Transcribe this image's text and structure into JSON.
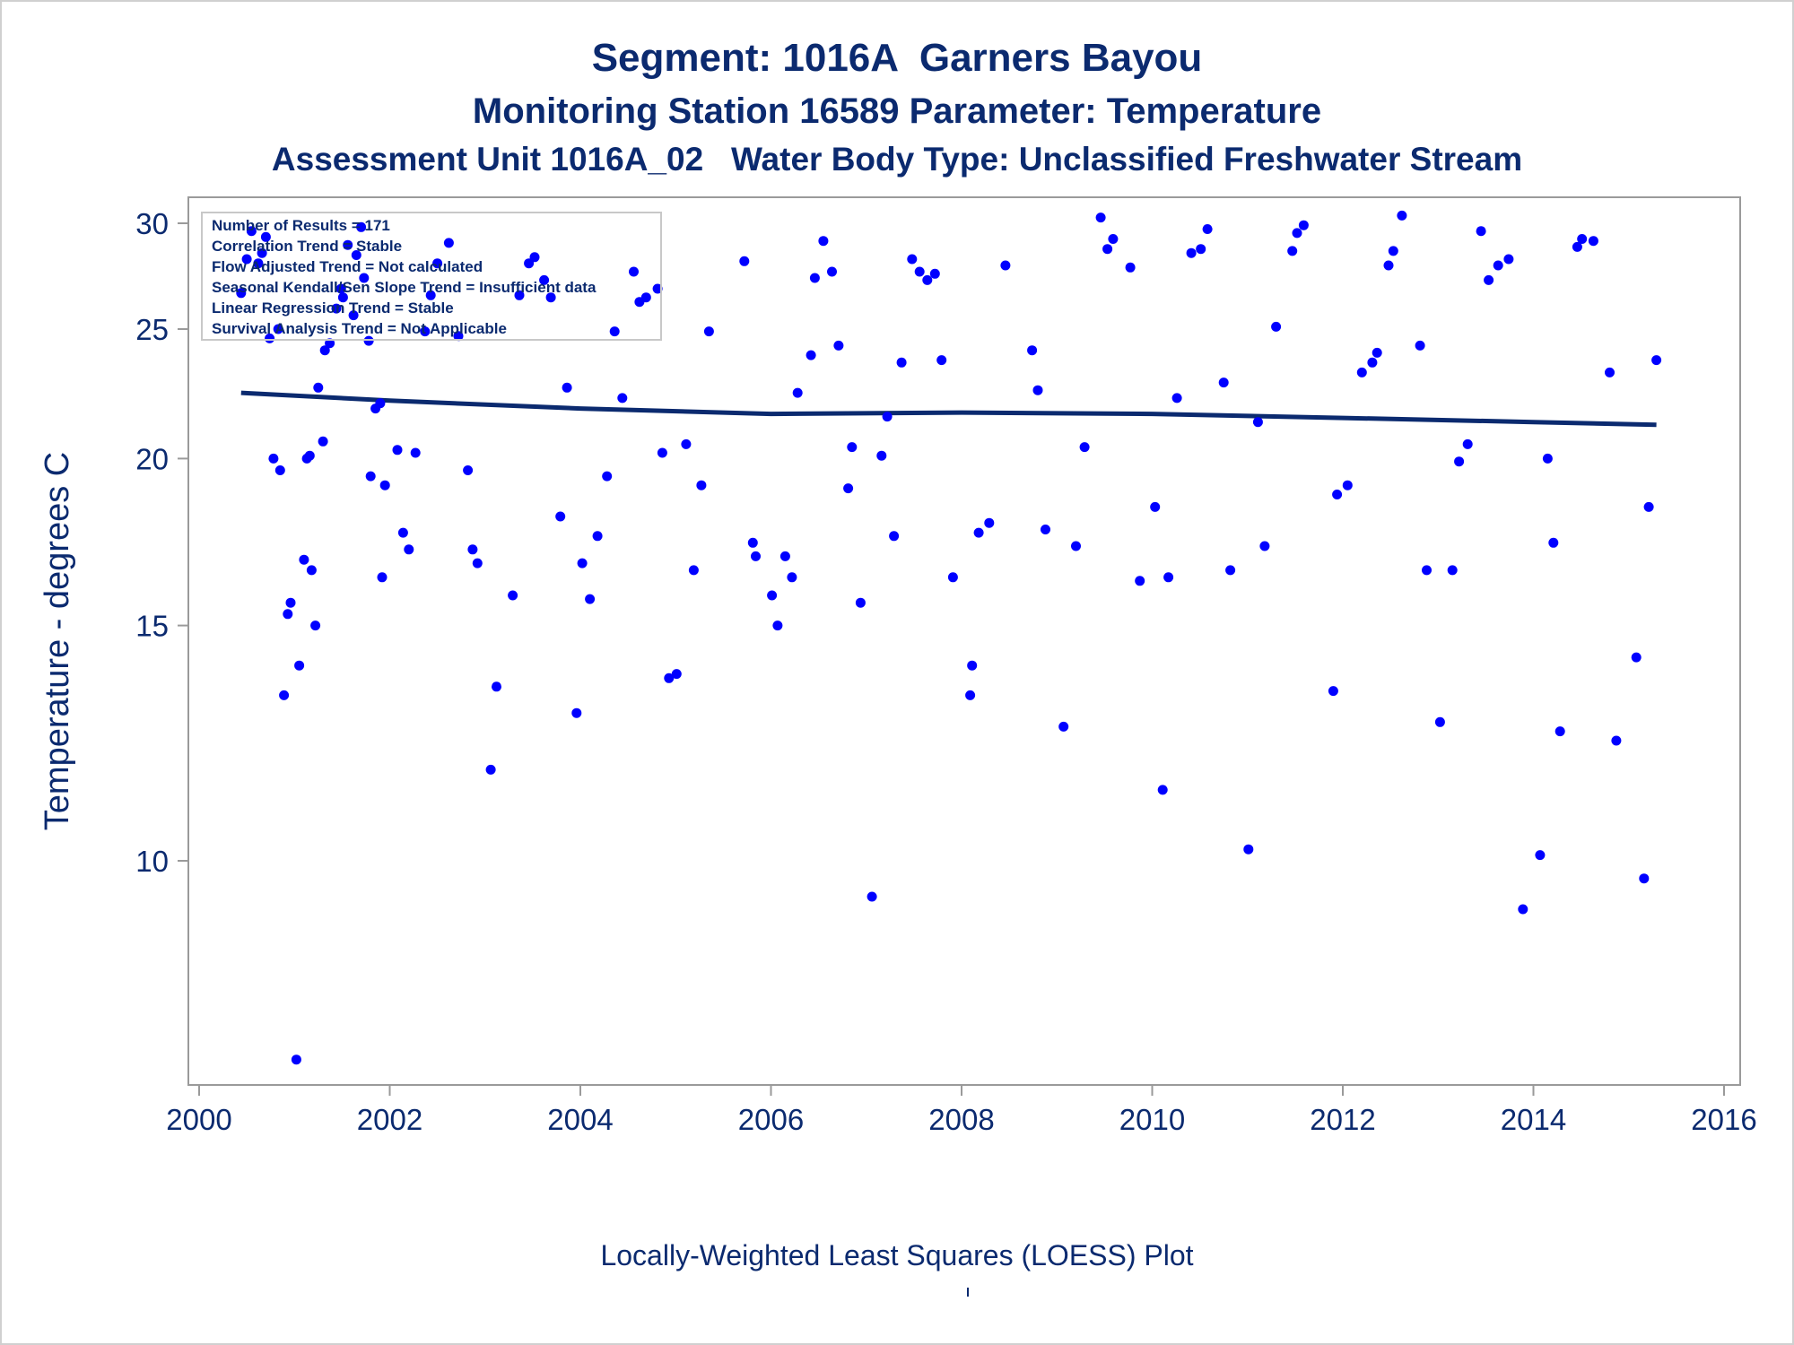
{
  "titles": {
    "line1": "Segment: 1016A  Garners Bayou",
    "line2": "Monitoring Station 16589 Parameter: Temperature",
    "line3": "Assessment Unit 1016A_02   Water Body Type: Unclassified Freshwater Stream"
  },
  "inset": {
    "lines": [
      "Number of Results = 171",
      "Correlation Trend = Stable",
      "Flow Adjusted Trend = Not calculated",
      "Seasonal Kendall/Sen Slope Trend = Insufficient data",
      "Linear Regression Trend = Stable",
      "Survival Analysis Trend = Not Applicable"
    ]
  },
  "footnote": "Locally-Weighted Least Squares (LOESS) Plot",
  "colors": {
    "points": "#0000ff",
    "loess": "#0b2a6f",
    "text": "#0b2a6f",
    "axis": "#9a9a9a"
  },
  "chart_data": {
    "type": "scatter",
    "title": "Segment: 1016A  Garners Bayou",
    "ylabel": "Temperature - degrees C",
    "xlabel": "",
    "x_scale": "linear (year)",
    "y_scale": "log",
    "xlim": [
      2000,
      2016
    ],
    "ylim": [
      7.0,
      31.0
    ],
    "x_ticks": [
      "2000",
      "2002",
      "2004",
      "2006",
      "2008",
      "2010",
      "2012",
      "2014",
      "2016"
    ],
    "y_ticks": [
      10,
      15,
      20,
      25,
      30
    ],
    "grid": false,
    "legend": "none",
    "points": [
      [
        2000.44,
        26.6
      ],
      [
        2000.5,
        28.2
      ],
      [
        2000.55,
        29.6
      ],
      [
        2000.62,
        28.0
      ],
      [
        2000.66,
        28.5
      ],
      [
        2000.7,
        29.3
      ],
      [
        2000.74,
        24.6
      ],
      [
        2000.78,
        20.0
      ],
      [
        2000.83,
        25.0
      ],
      [
        2000.85,
        19.6
      ],
      [
        2000.89,
        13.3
      ],
      [
        2000.93,
        15.3
      ],
      [
        2000.96,
        15.6
      ],
      [
        2001.02,
        7.1
      ],
      [
        2001.05,
        14.0
      ],
      [
        2001.1,
        16.8
      ],
      [
        2001.13,
        20.0
      ],
      [
        2001.16,
        20.1
      ],
      [
        2001.18,
        16.5
      ],
      [
        2001.22,
        15.0
      ],
      [
        2001.25,
        22.6
      ],
      [
        2001.3,
        20.6
      ],
      [
        2001.32,
        24.1
      ],
      [
        2001.37,
        24.4
      ],
      [
        2001.44,
        25.9
      ],
      [
        2001.49,
        26.8
      ],
      [
        2001.51,
        26.4
      ],
      [
        2001.56,
        28.9
      ],
      [
        2001.62,
        25.6
      ],
      [
        2001.65,
        28.4
      ],
      [
        2001.7,
        29.8
      ],
      [
        2001.73,
        27.3
      ],
      [
        2001.78,
        24.5
      ],
      [
        2001.8,
        19.4
      ],
      [
        2001.85,
        21.8
      ],
      [
        2001.9,
        22.0
      ],
      [
        2001.92,
        16.3
      ],
      [
        2001.95,
        19.1
      ],
      [
        2002.08,
        20.3
      ],
      [
        2002.14,
        17.6
      ],
      [
        2002.2,
        17.1
      ],
      [
        2002.27,
        20.2
      ],
      [
        2002.37,
        24.9
      ],
      [
        2002.43,
        26.5
      ],
      [
        2002.5,
        28.0
      ],
      [
        2002.62,
        29.0
      ],
      [
        2002.72,
        24.7
      ],
      [
        2002.82,
        19.6
      ],
      [
        2002.87,
        17.1
      ],
      [
        2002.92,
        16.7
      ],
      [
        2003.06,
        11.7
      ],
      [
        2003.12,
        13.5
      ],
      [
        2003.29,
        15.8
      ],
      [
        2003.36,
        26.5
      ],
      [
        2003.46,
        28.0
      ],
      [
        2003.52,
        28.3
      ],
      [
        2003.62,
        27.2
      ],
      [
        2003.69,
        26.4
      ],
      [
        2003.79,
        18.1
      ],
      [
        2003.86,
        22.6
      ],
      [
        2003.96,
        12.9
      ],
      [
        2004.02,
        16.7
      ],
      [
        2004.1,
        15.7
      ],
      [
        2004.18,
        17.5
      ],
      [
        2004.28,
        19.4
      ],
      [
        2004.36,
        24.9
      ],
      [
        2004.44,
        22.2
      ],
      [
        2004.56,
        27.6
      ],
      [
        2004.62,
        26.2
      ],
      [
        2004.69,
        26.4
      ],
      [
        2004.81,
        26.8
      ],
      [
        2004.86,
        20.2
      ],
      [
        2004.93,
        13.7
      ],
      [
        2005.01,
        13.8
      ],
      [
        2005.11,
        20.5
      ],
      [
        2005.19,
        16.5
      ],
      [
        2005.27,
        19.1
      ],
      [
        2005.35,
        24.9
      ],
      [
        2005.72,
        28.1
      ],
      [
        2005.81,
        17.3
      ],
      [
        2005.84,
        16.9
      ],
      [
        2006.01,
        15.8
      ],
      [
        2006.07,
        15.0
      ],
      [
        2006.15,
        16.9
      ],
      [
        2006.22,
        16.3
      ],
      [
        2006.28,
        22.4
      ],
      [
        2006.42,
        23.9
      ],
      [
        2006.46,
        27.3
      ],
      [
        2006.55,
        29.1
      ],
      [
        2006.64,
        27.6
      ],
      [
        2006.71,
        24.3
      ],
      [
        2006.81,
        19.0
      ],
      [
        2006.85,
        20.4
      ],
      [
        2006.94,
        15.6
      ],
      [
        2007.06,
        9.4
      ],
      [
        2007.16,
        20.1
      ],
      [
        2007.22,
        21.5
      ],
      [
        2007.29,
        17.5
      ],
      [
        2007.37,
        23.6
      ],
      [
        2007.48,
        28.2
      ],
      [
        2007.56,
        27.6
      ],
      [
        2007.64,
        27.2
      ],
      [
        2007.72,
        27.5
      ],
      [
        2007.79,
        23.7
      ],
      [
        2007.91,
        16.3
      ],
      [
        2008.09,
        13.3
      ],
      [
        2008.11,
        14.0
      ],
      [
        2008.18,
        17.6
      ],
      [
        2008.29,
        17.9
      ],
      [
        2008.46,
        27.9
      ],
      [
        2008.74,
        24.1
      ],
      [
        2008.8,
        22.5
      ],
      [
        2008.88,
        17.7
      ],
      [
        2009.07,
        12.6
      ],
      [
        2009.2,
        17.2
      ],
      [
        2009.29,
        20.4
      ],
      [
        2009.46,
        30.3
      ],
      [
        2009.53,
        28.7
      ],
      [
        2009.59,
        29.2
      ],
      [
        2009.77,
        27.8
      ],
      [
        2009.87,
        16.2
      ],
      [
        2010.03,
        18.4
      ],
      [
        2010.11,
        11.3
      ],
      [
        2010.17,
        16.3
      ],
      [
        2010.26,
        22.2
      ],
      [
        2010.41,
        28.5
      ],
      [
        2010.51,
        28.7
      ],
      [
        2010.58,
        29.7
      ],
      [
        2010.75,
        22.8
      ],
      [
        2010.82,
        16.5
      ],
      [
        2011.01,
        10.2
      ],
      [
        2011.11,
        21.3
      ],
      [
        2011.18,
        17.2
      ],
      [
        2011.3,
        25.1
      ],
      [
        2011.47,
        28.6
      ],
      [
        2011.52,
        29.5
      ],
      [
        2011.59,
        29.9
      ],
      [
        2011.9,
        13.4
      ],
      [
        2011.94,
        18.8
      ],
      [
        2012.05,
        19.1
      ],
      [
        2012.2,
        23.2
      ],
      [
        2012.31,
        23.6
      ],
      [
        2012.36,
        24.0
      ],
      [
        2012.48,
        27.9
      ],
      [
        2012.53,
        28.6
      ],
      [
        2012.62,
        30.4
      ],
      [
        2012.81,
        24.3
      ],
      [
        2012.88,
        16.5
      ],
      [
        2013.02,
        12.7
      ],
      [
        2013.15,
        16.5
      ],
      [
        2013.22,
        19.9
      ],
      [
        2013.31,
        20.5
      ],
      [
        2013.45,
        29.6
      ],
      [
        2013.53,
        27.2
      ],
      [
        2013.63,
        27.9
      ],
      [
        2013.74,
        28.2
      ],
      [
        2013.89,
        9.2
      ],
      [
        2014.07,
        10.1
      ],
      [
        2014.15,
        20.0
      ],
      [
        2014.21,
        17.3
      ],
      [
        2014.28,
        12.5
      ],
      [
        2014.46,
        28.8
      ],
      [
        2014.51,
        29.2
      ],
      [
        2014.63,
        29.1
      ],
      [
        2014.8,
        23.2
      ],
      [
        2014.87,
        12.3
      ],
      [
        2015.08,
        14.2
      ],
      [
        2015.16,
        9.7
      ],
      [
        2015.21,
        18.4
      ],
      [
        2015.29,
        23.7
      ]
    ],
    "loess": [
      [
        2000.44,
        22.4
      ],
      [
        2002.0,
        22.1
      ],
      [
        2004.0,
        21.8
      ],
      [
        2006.0,
        21.6
      ],
      [
        2008.0,
        21.65
      ],
      [
        2010.0,
        21.6
      ],
      [
        2012.0,
        21.45
      ],
      [
        2014.0,
        21.3
      ],
      [
        2015.29,
        21.2
      ]
    ]
  }
}
